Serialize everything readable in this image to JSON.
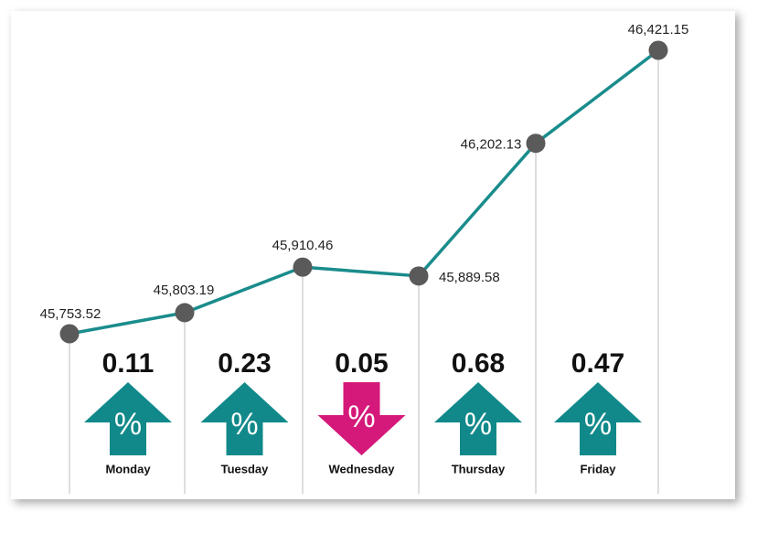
{
  "chart_data": {
    "type": "line",
    "color": "#1a8c8c",
    "marker_color": "#5a5a5a",
    "values": [
      45753.52,
      45803.19,
      45910.46,
      45889.58,
      46202.13,
      46421.15
    ],
    "value_labels": [
      "45,753.52",
      "45,803.19",
      "45,910.46",
      "45,889.58",
      "46,202.13",
      "46,421.15"
    ],
    "changes": {
      "categories": [
        "Monday",
        "Tuesday",
        "Wednesday",
        "Thursday",
        "Friday"
      ],
      "values": [
        0.11,
        0.23,
        0.05,
        0.68,
        0.47
      ],
      "direction": [
        "up",
        "up",
        "down",
        "up",
        "up"
      ],
      "symbol": "%",
      "up_color": "#11898a",
      "down_color": "#d4197a"
    }
  }
}
